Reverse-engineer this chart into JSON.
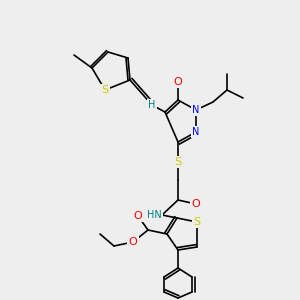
{
  "background_color": "#eeeeee",
  "bond_color": "#000000",
  "atom_colors": {
    "S": "#cccc00",
    "N": "#0000ff",
    "O": "#ff0000",
    "H": "#008080",
    "C": "#000000"
  },
  "font_size_atom": 7,
  "figsize": [
    3.0,
    3.0
  ],
  "dpi": 100
}
